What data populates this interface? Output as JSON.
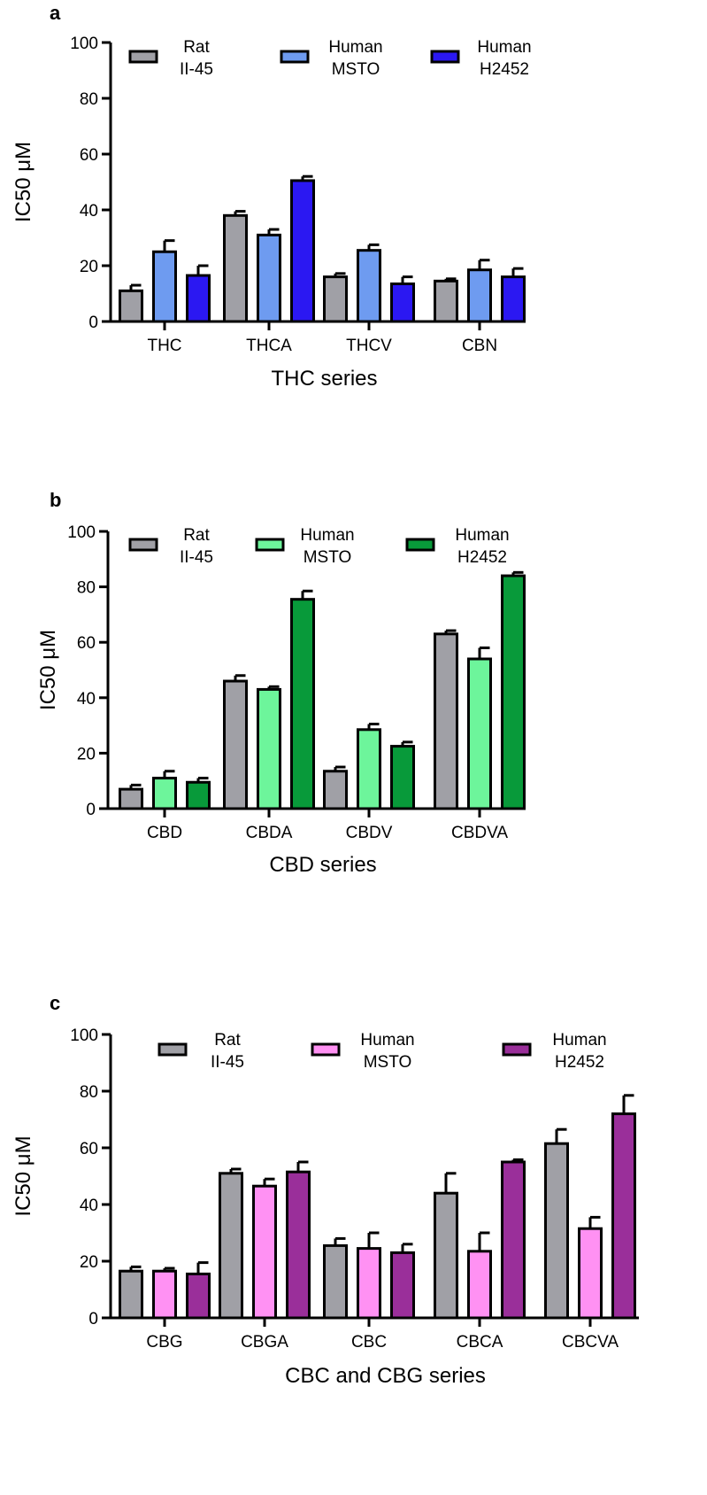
{
  "colors": {
    "rat": "#a0a0a6",
    "thc_msto": "#6e9bf0",
    "thc_h2452": "#2b18f2",
    "cbd_msto": "#6df59b",
    "cbd_h2452": "#089a3a",
    "cbc_msto": "#ff91f3",
    "cbc_h2452": "#9a2f9a"
  },
  "chart_data": [
    {
      "type": "bar",
      "panel": "a",
      "xlabel": "THC series",
      "ylabel": "IC50 μM",
      "ylim": [
        0,
        100
      ],
      "yticks": [
        "0",
        "20",
        "40",
        "60",
        "80",
        "100"
      ],
      "categories": [
        "THC",
        "THCA",
        "THCV",
        "CBN"
      ],
      "legend_position": "top",
      "series": [
        {
          "name": "Rat II-45",
          "name_lines": [
            "Rat",
            "II-45"
          ],
          "color": "#a0a0a6",
          "values": [
            11,
            38,
            16,
            14.5
          ],
          "errors": [
            2,
            1.5,
            1.2,
            0.8
          ]
        },
        {
          "name": "Human MSTO",
          "name_lines": [
            "Human",
            "MSTO"
          ],
          "color": "#6e9bf0",
          "values": [
            25,
            31,
            25.5,
            18.5
          ],
          "errors": [
            4,
            2,
            2,
            3.5
          ]
        },
        {
          "name": "Human H2452",
          "name_lines": [
            "Human",
            "H2452"
          ],
          "color": "#2b18f2",
          "values": [
            16.5,
            50.5,
            13.5,
            16
          ],
          "errors": [
            3.5,
            1.5,
            2.5,
            3
          ]
        }
      ]
    },
    {
      "type": "bar",
      "panel": "b",
      "xlabel": "CBD series",
      "ylabel": "IC50 μM",
      "ylim": [
        0,
        100
      ],
      "yticks": [
        "0",
        "20",
        "40",
        "60",
        "80",
        "100"
      ],
      "categories": [
        "CBD",
        "CBDA",
        "CBDV",
        "CBDVA"
      ],
      "legend_position": "top",
      "series": [
        {
          "name": "Rat II-45",
          "name_lines": [
            "Rat",
            "II-45"
          ],
          "color": "#a0a0a6",
          "values": [
            7,
            46,
            13.5,
            63
          ],
          "errors": [
            1.5,
            2,
            1.5,
            1.2
          ]
        },
        {
          "name": "Human MSTO",
          "name_lines": [
            "Human",
            "MSTO"
          ],
          "color": "#6df59b",
          "values": [
            11,
            43,
            28.5,
            54
          ],
          "errors": [
            2.5,
            1,
            2,
            4
          ]
        },
        {
          "name": "Human H2452",
          "name_lines": [
            "Human",
            "H2452"
          ],
          "color": "#089a3a",
          "values": [
            9.5,
            75.5,
            22.5,
            84
          ],
          "errors": [
            1.5,
            3,
            1.5,
            1.2
          ]
        }
      ]
    },
    {
      "type": "bar",
      "panel": "c",
      "xlabel": "CBC and CBG series",
      "ylabel": "IC50 μM",
      "ylim": [
        0,
        100
      ],
      "yticks": [
        "0",
        "20",
        "40",
        "60",
        "80",
        "100"
      ],
      "categories": [
        "CBG",
        "CBGA",
        "CBC",
        "CBCA",
        "CBCVA"
      ],
      "legend_position": "top",
      "series": [
        {
          "name": "Rat II-45",
          "name_lines": [
            "Rat",
            "II-45"
          ],
          "color": "#a0a0a6",
          "values": [
            16.5,
            51,
            25.5,
            44,
            61.5
          ],
          "errors": [
            1.5,
            1.5,
            2.5,
            7,
            5
          ]
        },
        {
          "name": "Human MSTO",
          "name_lines": [
            "Human",
            "MSTO"
          ],
          "color": "#ff91f3",
          "values": [
            16.5,
            46.5,
            24.5,
            23.5,
            31.5
          ],
          "errors": [
            1,
            2.5,
            5.5,
            6.5,
            4
          ]
        },
        {
          "name": "Human H2452",
          "name_lines": [
            "Human",
            "H2452"
          ],
          "color": "#9a2f9a",
          "values": [
            15.5,
            51.5,
            23,
            55,
            72
          ],
          "errors": [
            4,
            3.5,
            3,
            0.8,
            6.5
          ]
        }
      ]
    }
  ]
}
